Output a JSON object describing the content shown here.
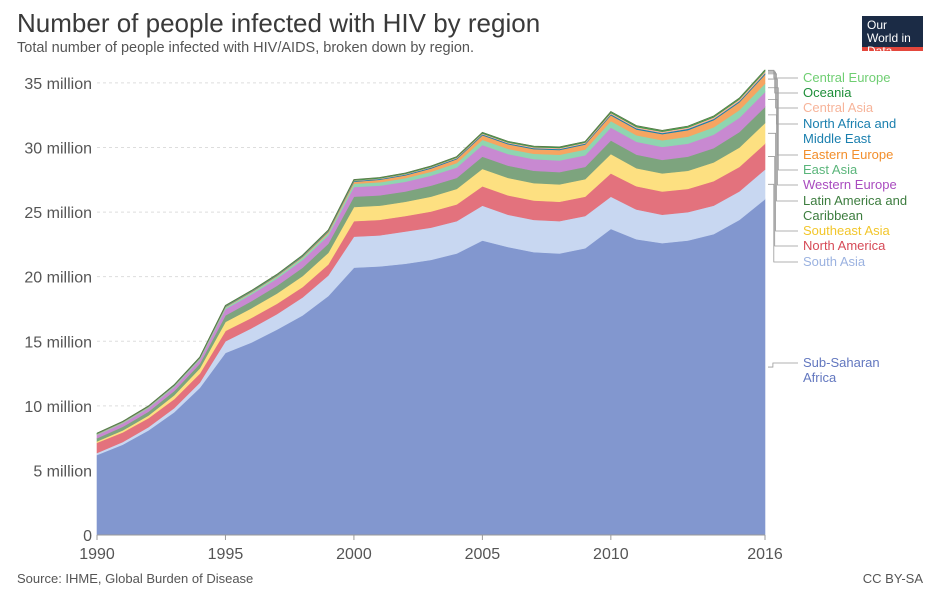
{
  "header": {
    "title": "Number of people infected with HIV by region",
    "subtitle": "Total number of people infected with HIV/AIDS, broken down by region.",
    "logo_text": "Our World in Data"
  },
  "footer": {
    "source": "Source: IHME, Global Burden of Disease",
    "license": "CC BY-SA"
  },
  "chart_data": {
    "type": "area",
    "stacked": true,
    "title": "Number of people infected with HIV by region",
    "subtitle": "Total number of people infected with HIV/AIDS, broken down by region.",
    "xlabel": "",
    "ylabel": "",
    "x_ticks": [
      "1990",
      "1995",
      "2000",
      "2005",
      "2010",
      "2016"
    ],
    "y_ticks": [
      "0",
      "5 million",
      "10 million",
      "15 million",
      "20 million",
      "25 million",
      "30 million",
      "35 million"
    ],
    "xlim": [
      1990,
      2016
    ],
    "ylim": [
      0,
      36000000
    ],
    "grid": "horizontal dashed",
    "legend_placement": "right",
    "x": [
      1990,
      1991,
      1992,
      1993,
      1994,
      1995,
      1996,
      1997,
      1998,
      1999,
      2000,
      2001,
      2002,
      2003,
      2004,
      2005,
      2006,
      2007,
      2008,
      2009,
      2010,
      2011,
      2012,
      2013,
      2014,
      2015,
      2016
    ],
    "series": [
      {
        "name": "Sub-Saharan Africa",
        "color": "#8297cf",
        "values": [
          6.2,
          7.0,
          8.1,
          9.5,
          11.4,
          14.1,
          14.9,
          15.9,
          17.0,
          18.5,
          20.7,
          20.8,
          21.0,
          21.3,
          21.8,
          22.8,
          22.3,
          21.9,
          21.8,
          22.2,
          23.7,
          22.9,
          22.6,
          22.8,
          23.3,
          24.4,
          26.0
        ]
      },
      {
        "name": "South Asia",
        "color": "#c8d7f1",
        "values": [
          0.15,
          0.2,
          0.25,
          0.32,
          0.4,
          0.9,
          1.1,
          1.2,
          1.4,
          1.6,
          2.4,
          2.4,
          2.5,
          2.5,
          2.5,
          2.7,
          2.5,
          2.5,
          2.5,
          2.5,
          2.5,
          2.3,
          2.2,
          2.2,
          2.2,
          2.2,
          2.3
        ]
      },
      {
        "name": "North America",
        "color": "#e3727d",
        "values": [
          0.8,
          0.75,
          0.7,
          0.7,
          0.7,
          0.8,
          0.8,
          0.8,
          0.8,
          0.85,
          1.2,
          1.2,
          1.2,
          1.25,
          1.3,
          1.5,
          1.5,
          1.5,
          1.5,
          1.5,
          1.8,
          1.8,
          1.8,
          1.8,
          1.9,
          1.9,
          2.0
        ]
      },
      {
        "name": "Southeast Asia",
        "color": "#fde081",
        "values": [
          0.1,
          0.15,
          0.2,
          0.3,
          0.4,
          0.7,
          0.75,
          0.8,
          0.85,
          0.9,
          1.1,
          1.1,
          1.1,
          1.15,
          1.2,
          1.35,
          1.35,
          1.35,
          1.35,
          1.35,
          1.5,
          1.4,
          1.4,
          1.4,
          1.45,
          1.5,
          1.6
        ]
      },
      {
        "name": "Latin America and Caribbean",
        "color": "#7da47e",
        "values": [
          0.25,
          0.28,
          0.3,
          0.33,
          0.36,
          0.5,
          0.55,
          0.6,
          0.65,
          0.7,
          0.8,
          0.8,
          0.8,
          0.85,
          0.85,
          0.95,
          0.95,
          0.95,
          0.95,
          0.95,
          1.05,
          1.05,
          1.05,
          1.1,
          1.1,
          1.2,
          1.25
        ]
      },
      {
        "name": "Western Europe",
        "color": "#c889d1",
        "values": [
          0.25,
          0.27,
          0.28,
          0.3,
          0.32,
          0.5,
          0.52,
          0.55,
          0.6,
          0.63,
          0.75,
          0.75,
          0.75,
          0.78,
          0.8,
          0.9,
          0.9,
          0.9,
          0.9,
          0.9,
          1.0,
          1.0,
          1.0,
          1.0,
          1.05,
          1.1,
          1.15
        ]
      },
      {
        "name": "East Asia",
        "color": "#8fd5b0",
        "values": [
          0.05,
          0.06,
          0.07,
          0.08,
          0.09,
          0.12,
          0.14,
          0.16,
          0.18,
          0.2,
          0.25,
          0.26,
          0.28,
          0.3,
          0.35,
          0.4,
          0.4,
          0.42,
          0.44,
          0.45,
          0.5,
          0.5,
          0.52,
          0.55,
          0.57,
          0.6,
          0.65
        ]
      },
      {
        "name": "Eastern Europe",
        "color": "#f6a561",
        "values": [
          0.03,
          0.03,
          0.03,
          0.03,
          0.03,
          0.05,
          0.05,
          0.06,
          0.07,
          0.1,
          0.15,
          0.2,
          0.22,
          0.25,
          0.3,
          0.35,
          0.35,
          0.36,
          0.37,
          0.38,
          0.45,
          0.45,
          0.47,
          0.5,
          0.55,
          0.6,
          0.7
        ]
      },
      {
        "name": "North Africa and Middle East",
        "color": "#1a7fae",
        "values": [
          0.02,
          0.02,
          0.02,
          0.03,
          0.03,
          0.04,
          0.04,
          0.04,
          0.05,
          0.05,
          0.06,
          0.06,
          0.06,
          0.07,
          0.07,
          0.08,
          0.08,
          0.08,
          0.08,
          0.08,
          0.09,
          0.09,
          0.09,
          0.1,
          0.1,
          0.1,
          0.11
        ]
      },
      {
        "name": "Central Asia",
        "color": "#f7b49a",
        "values": [
          0.01,
          0.01,
          0.01,
          0.01,
          0.01,
          0.02,
          0.02,
          0.02,
          0.02,
          0.03,
          0.04,
          0.04,
          0.05,
          0.05,
          0.06,
          0.07,
          0.07,
          0.07,
          0.08,
          0.08,
          0.1,
          0.1,
          0.1,
          0.11,
          0.12,
          0.13,
          0.14
        ]
      },
      {
        "name": "Oceania",
        "color": "#1f8f3a",
        "values": [
          0.01,
          0.01,
          0.01,
          0.01,
          0.01,
          0.02,
          0.02,
          0.02,
          0.02,
          0.02,
          0.03,
          0.03,
          0.03,
          0.03,
          0.03,
          0.04,
          0.04,
          0.04,
          0.04,
          0.04,
          0.05,
          0.05,
          0.05,
          0.05,
          0.05,
          0.05,
          0.05
        ]
      },
      {
        "name": "Central Europe",
        "color": "#6fce72",
        "values": [
          0.01,
          0.01,
          0.01,
          0.01,
          0.01,
          0.02,
          0.02,
          0.02,
          0.02,
          0.02,
          0.03,
          0.03,
          0.03,
          0.03,
          0.03,
          0.03,
          0.03,
          0.03,
          0.03,
          0.03,
          0.04,
          0.04,
          0.04,
          0.04,
          0.04,
          0.04,
          0.05
        ]
      }
    ],
    "value_unit": "million",
    "legend_text_colors": {
      "Central Europe": "#6fce72",
      "Oceania": "#1f8f3a",
      "Central Asia": "#f7b49a",
      "North Africa and Middle East": "#1a7fae",
      "Eastern Europe": "#f28e2b",
      "East Asia": "#5ab57a",
      "Western Europe": "#a94bbf",
      "Latin America and Caribbean": "#3d7d3f",
      "Southeast Asia": "#f2c62b",
      "North America": "#d64a57",
      "South Asia": "#9bb2e0",
      "Sub-Saharan Africa": "#6277bf"
    },
    "legend_lines": {
      "Central Europe": [
        "Central Europe"
      ],
      "Oceania": [
        "Oceania"
      ],
      "Central Asia": [
        "Central Asia"
      ],
      "North Africa and Middle East": [
        "North Africa and",
        "Middle East"
      ],
      "Eastern Europe": [
        "Eastern Europe"
      ],
      "East Asia": [
        "East Asia"
      ],
      "Western Europe": [
        "Western Europe"
      ],
      "Latin America and Caribbean": [
        "Latin America and",
        "Caribbean"
      ],
      "Southeast Asia": [
        "Southeast Asia"
      ],
      "North America": [
        "North America"
      ],
      "South Asia": [
        "South Asia"
      ],
      "Sub-Saharan Africa": [
        "Sub-Saharan",
        "Africa"
      ]
    }
  }
}
